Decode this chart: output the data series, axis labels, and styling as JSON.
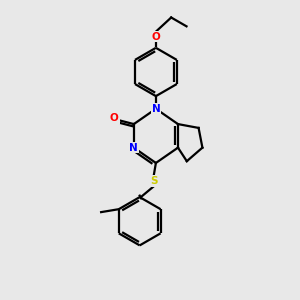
{
  "background_color": "#e8e8e8",
  "bond_color": "#000000",
  "atom_colors": {
    "N": "#0000ff",
    "O_carbonyl": "#ff0000",
    "O_ether": "#ff0000",
    "S": "#cccc00"
  },
  "line_width": 1.6,
  "figsize": [
    3.0,
    3.0
  ],
  "dpi": 100
}
